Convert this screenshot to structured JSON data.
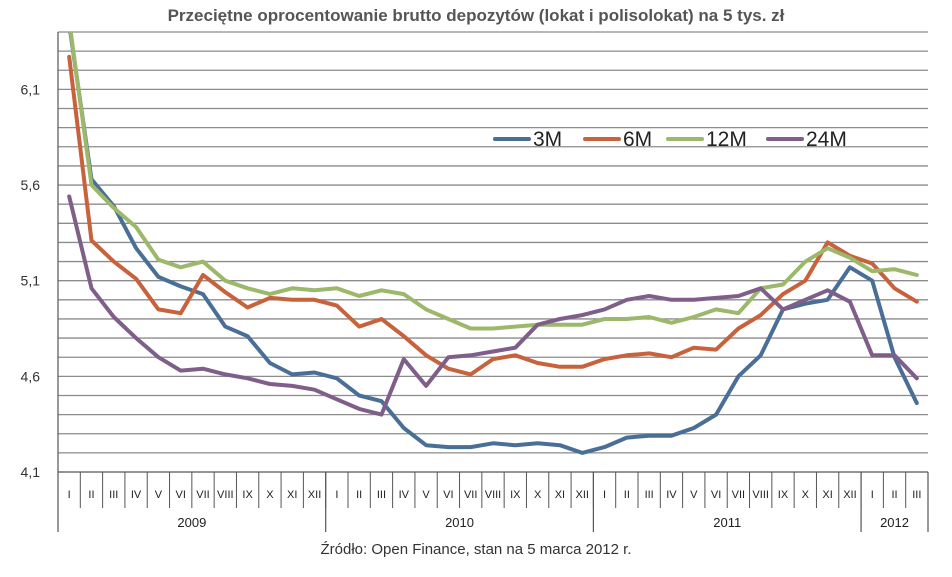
{
  "chart_data": {
    "type": "line",
    "title": "Przeciętne oprocentowanie brutto depozytów (lokat i polisolokat) na 5 tys. zł",
    "source": "Źródło: Open Finance, stan na 5 marca 2012 r.",
    "ylim": [
      4.1,
      6.4
    ],
    "yticks": [
      4.1,
      4.6,
      5.1,
      5.6,
      6.1
    ],
    "ytick_labels": [
      "4,1",
      "4,6",
      "5,1",
      "5,6",
      "6,1"
    ],
    "grid": true,
    "legend_position": "top-right",
    "categories": [
      "I",
      "II",
      "III",
      "IV",
      "V",
      "VI",
      "VII",
      "VIII",
      "IX",
      "X",
      "XI",
      "XII",
      "I",
      "II",
      "III",
      "IV",
      "V",
      "VI",
      "VII",
      "VIII",
      "IX",
      "X",
      "XI",
      "XII",
      "I",
      "II",
      "III",
      "IV",
      "V",
      "VI",
      "VII",
      "VIII",
      "IX",
      "X",
      "XI",
      "XII",
      "I",
      "II",
      "III"
    ],
    "years": [
      {
        "label": "2009",
        "months": 12
      },
      {
        "label": "2010",
        "months": 12
      },
      {
        "label": "2011",
        "months": 12
      },
      {
        "label": "2012",
        "months": 3
      }
    ],
    "series": [
      {
        "name": "3M",
        "color": "#4a6f96",
        "values": [
          6.44,
          5.63,
          5.49,
          5.27,
          5.12,
          5.07,
          5.03,
          4.86,
          4.81,
          4.67,
          4.61,
          4.62,
          4.59,
          4.5,
          4.47,
          4.33,
          4.24,
          4.23,
          4.23,
          4.25,
          4.24,
          4.25,
          4.24,
          4.2,
          4.23,
          4.28,
          4.29,
          4.29,
          4.33,
          4.4,
          4.6,
          4.71,
          4.95,
          4.98,
          5.0,
          5.17,
          5.1,
          4.7,
          4.46
        ]
      },
      {
        "name": "6M",
        "color": "#c7623c",
        "values": [
          6.27,
          5.31,
          5.2,
          5.11,
          4.95,
          4.93,
          5.13,
          5.04,
          4.96,
          5.01,
          5.0,
          5.0,
          4.97,
          4.86,
          4.9,
          4.81,
          4.71,
          4.64,
          4.61,
          4.69,
          4.71,
          4.67,
          4.65,
          4.65,
          4.69,
          4.71,
          4.72,
          4.7,
          4.75,
          4.74,
          4.85,
          4.92,
          5.03,
          5.1,
          5.3,
          5.23,
          5.19,
          5.06,
          4.99
        ]
      },
      {
        "name": "12M",
        "color": "#9cb86a",
        "values": [
          6.46,
          5.6,
          5.48,
          5.38,
          5.21,
          5.17,
          5.2,
          5.1,
          5.06,
          5.03,
          5.06,
          5.05,
          5.06,
          5.02,
          5.05,
          5.03,
          4.95,
          4.9,
          4.85,
          4.85,
          4.86,
          4.87,
          4.87,
          4.87,
          4.9,
          4.9,
          4.91,
          4.88,
          4.91,
          4.95,
          4.93,
          5.06,
          5.08,
          5.2,
          5.27,
          5.22,
          5.15,
          5.16,
          5.13
        ]
      },
      {
        "name": "24M",
        "color": "#7f5f8a",
        "values": [
          5.54,
          5.06,
          4.91,
          4.8,
          4.7,
          4.63,
          4.64,
          4.61,
          4.59,
          4.56,
          4.55,
          4.53,
          4.48,
          4.43,
          4.4,
          4.69,
          4.55,
          4.7,
          4.71,
          4.73,
          4.75,
          4.87,
          4.9,
          4.92,
          4.95,
          5.0,
          5.02,
          5.0,
          5.0,
          5.01,
          5.02,
          5.06,
          4.95,
          5.0,
          5.05,
          4.99,
          4.71,
          4.71,
          4.59
        ]
      }
    ]
  }
}
